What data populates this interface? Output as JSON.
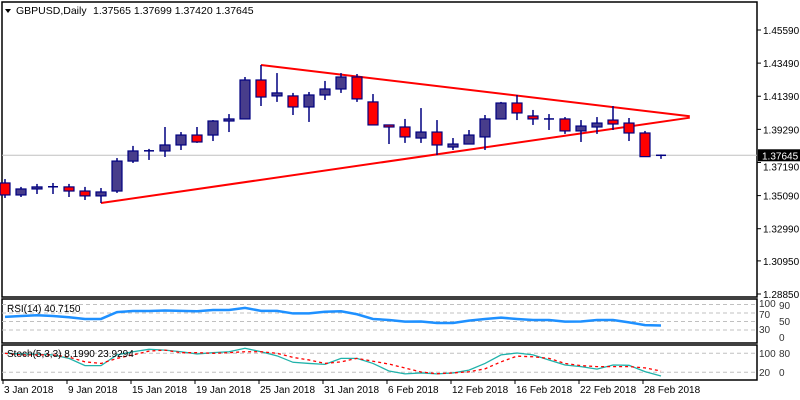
{
  "header": {
    "menu_icon": "triangle-down-icon",
    "symbol": "GBPUSD,Daily",
    "ohlc_text": "1.37565 1.37699 1.37420 1.37645"
  },
  "colors": {
    "bull_fill": "#483d8b",
    "bear_fill": "#ff0000",
    "candle_outline": "#000080",
    "trendline": "#ff0000",
    "rsi_line": "#1e90ff",
    "stoch_main": "#20b2aa",
    "stoch_signal": "#ff0000",
    "price_line": "#c0c0c0",
    "level_line": "#c0c0c0"
  },
  "chart_data": [
    {
      "type": "candlestick",
      "title": "GBPUSD,Daily",
      "current_price": "1.37645",
      "y_ticks": [
        "1.45590",
        "1.43490",
        "1.41390",
        "1.39290",
        "1.37190",
        "1.35090",
        "1.32990",
        "1.30950",
        "1.28850"
      ],
      "ylim": [
        1.2885,
        1.4559
      ],
      "x_ticks": [
        {
          "date": "2018-01-03",
          "label": "3 Jan 2018"
        },
        {
          "date": "2018-01-09",
          "label": "9 Jan 2018"
        },
        {
          "date": "2018-01-15",
          "label": "15 Jan 2018"
        },
        {
          "date": "2018-01-19",
          "label": "19 Jan 2018"
        },
        {
          "date": "2018-01-25",
          "label": "25 Jan 2018"
        },
        {
          "date": "2018-01-31",
          "label": "31 Jan 2018"
        },
        {
          "date": "2018-02-06",
          "label": "6 Feb 2018"
        },
        {
          "date": "2018-02-12",
          "label": "12 Feb 2018"
        },
        {
          "date": "2018-02-16",
          "label": "16 Feb 2018"
        },
        {
          "date": "2018-02-22",
          "label": "22 Feb 2018"
        },
        {
          "date": "2018-02-28",
          "label": "28 Feb 2018"
        }
      ],
      "dates": [
        "2018-01-03",
        "2018-01-04",
        "2018-01-05",
        "2018-01-08",
        "2018-01-09",
        "2018-01-10",
        "2018-01-11",
        "2018-01-12",
        "2018-01-15",
        "2018-01-16",
        "2018-01-17",
        "2018-01-18",
        "2018-01-19",
        "2018-01-22",
        "2018-01-23",
        "2018-01-24",
        "2018-01-25",
        "2018-01-26",
        "2018-01-29",
        "2018-01-30",
        "2018-01-31",
        "2018-02-01",
        "2018-02-02",
        "2018-02-05",
        "2018-02-06",
        "2018-02-07",
        "2018-02-08",
        "2018-02-09",
        "2018-02-12",
        "2018-02-13",
        "2018-02-14",
        "2018-02-15",
        "2018-02-16",
        "2018-02-19",
        "2018-02-20",
        "2018-02-21",
        "2018-02-22",
        "2018-02-23",
        "2018-02-26",
        "2018-02-27",
        "2018-02-28",
        "2018-03-01"
      ],
      "ohlc": [
        [
          1.3589,
          1.3614,
          1.3494,
          1.3513
        ],
        [
          1.3513,
          1.3564,
          1.35,
          1.3551
        ],
        [
          1.3551,
          1.3583,
          1.3519,
          1.3564
        ],
        [
          1.3564,
          1.3589,
          1.3519,
          1.3565
        ],
        [
          1.3564,
          1.3583,
          1.35,
          1.3538
        ],
        [
          1.3538,
          1.3564,
          1.3481,
          1.3507
        ],
        [
          1.3507,
          1.3557,
          1.3462,
          1.3532
        ],
        [
          1.3538,
          1.3747,
          1.3526,
          1.3728
        ],
        [
          1.3728,
          1.3824,
          1.3716,
          1.3792
        ],
        [
          1.3792,
          1.3805,
          1.3735,
          1.3793
        ],
        [
          1.3792,
          1.3944,
          1.3754,
          1.383
        ],
        [
          1.383,
          1.3912,
          1.3798,
          1.3893
        ],
        [
          1.3893,
          1.3944,
          1.3843,
          1.3849
        ],
        [
          1.3893,
          1.3988,
          1.3855,
          1.3982
        ],
        [
          1.3982,
          1.4026,
          1.3912,
          1.3995
        ],
        [
          1.3995,
          1.4261,
          1.3995,
          1.4242
        ],
        [
          1.4242,
          1.4337,
          1.4077,
          1.4134
        ],
        [
          1.4141,
          1.4286,
          1.4103,
          1.416
        ],
        [
          1.4141,
          1.416,
          1.402,
          1.4071
        ],
        [
          1.4071,
          1.4166,
          1.3976,
          1.4147
        ],
        [
          1.4147,
          1.4236,
          1.4115,
          1.4185
        ],
        [
          1.4185,
          1.4286,
          1.416,
          1.4261
        ],
        [
          1.4261,
          1.428,
          1.4103,
          1.4122
        ],
        [
          1.4103,
          1.4153,
          1.3957,
          1.3957
        ],
        [
          1.3957,
          1.3957,
          1.3836,
          1.3944
        ],
        [
          1.3944,
          1.3995,
          1.3843,
          1.3881
        ],
        [
          1.3874,
          1.4064,
          1.3843,
          1.3912
        ],
        [
          1.3912,
          1.3988,
          1.3766,
          1.383
        ],
        [
          1.3817,
          1.3874,
          1.3798,
          1.3836
        ],
        [
          1.3836,
          1.3925,
          1.3836,
          1.3893
        ],
        [
          1.3881,
          1.402,
          1.3798,
          1.3995
        ],
        [
          1.3995,
          1.4103,
          1.3995,
          1.4096
        ],
        [
          1.4096,
          1.4147,
          1.3988,
          1.4033
        ],
        [
          1.4014,
          1.4052,
          1.3957,
          1.3995
        ],
        [
          1.3995,
          1.4026,
          1.3925,
          1.3994
        ],
        [
          1.3995,
          1.4007,
          1.39,
          1.3919
        ],
        [
          1.3919,
          1.3988,
          1.3849,
          1.395
        ],
        [
          1.3944,
          1.4007,
          1.39,
          1.3969
        ],
        [
          1.3988,
          1.4077,
          1.3925,
          1.3963
        ],
        [
          1.3969,
          1.4001,
          1.3855,
          1.3906
        ],
        [
          1.3906,
          1.3919,
          1.3754,
          1.3756
        ],
        [
          1.37565,
          1.37699,
          1.3742,
          1.37645
        ]
      ],
      "trendlines": [
        {
          "from": {
            "date": "2018-01-25",
            "price": 1.4337
          },
          "to": {
            "date": "2018-03-05",
            "price": 1.4012
          }
        },
        {
          "from": {
            "date": "2018-01-11",
            "price": 1.3462
          },
          "to": {
            "date": "2018-03-05",
            "price": 1.4003
          }
        }
      ]
    },
    {
      "type": "line",
      "label": "RSI(14) 40.7150",
      "ylim": [
        0,
        100
      ],
      "levels": [
        30,
        50,
        70,
        90
      ],
      "y_ticks": [
        "100",
        "90",
        "70",
        "50",
        "30",
        "0"
      ],
      "values": [
        61,
        63,
        64.6,
        63,
        60,
        56,
        56,
        72,
        74.7,
        74.7,
        76,
        75,
        74,
        77,
        77,
        82,
        75,
        75,
        69,
        69,
        73,
        74,
        67,
        56,
        53.5,
        49.6,
        50,
        46.5,
        46.5,
        52,
        56,
        59,
        56,
        53.5,
        53.5,
        49.6,
        50,
        53.5,
        53.5,
        48,
        41.5,
        40.715
      ]
    },
    {
      "type": "line",
      "label": "Stoch(5,3,3) 8.1990 23.9294",
      "ylim": [
        0,
        100
      ],
      "levels": [
        20,
        80
      ],
      "y_ticks": [
        "100",
        "80",
        "20",
        "0"
      ],
      "series": [
        {
          "role": "main",
          "values": [
            80,
            78,
            77,
            75,
            64,
            41,
            41,
            75,
            85,
            92.6,
            90,
            85,
            78,
            82,
            85,
            96,
            85,
            72,
            51.6,
            48,
            45,
            64,
            64,
            48,
            24,
            15,
            18,
            15,
            18,
            27,
            48,
            75,
            81,
            75,
            59,
            43,
            38,
            30,
            43,
            42,
            22,
            8.199
          ]
        },
        {
          "role": "signal",
          "values": [
            80,
            75,
            75,
            75,
            68,
            53,
            48,
            64,
            75,
            87,
            90,
            82,
            82,
            80,
            82,
            85,
            85,
            80,
            67,
            59,
            48,
            53,
            64,
            55,
            46,
            33.6,
            21,
            15.6,
            18,
            21.6,
            31,
            53,
            71,
            69,
            64,
            48,
            41,
            38,
            38,
            38,
            34,
            23.9294
          ]
        }
      ]
    }
  ]
}
